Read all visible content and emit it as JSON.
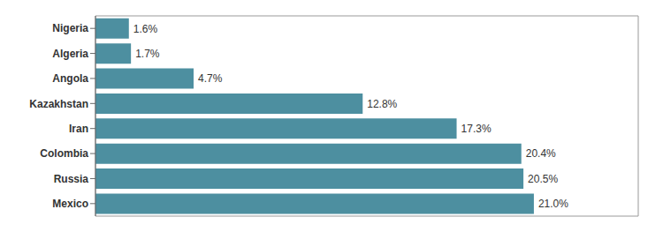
{
  "chart_data": {
    "type": "bar",
    "orientation": "horizontal",
    "categories": [
      "Mexico",
      "Russia",
      "Colombia",
      "Iran",
      "Kazakhstan",
      "Angola",
      "Algeria",
      "Nigeria"
    ],
    "values": [
      21.0,
      20.5,
      20.4,
      17.3,
      12.8,
      4.7,
      1.7,
      1.6
    ],
    "value_labels": [
      "21.0%",
      "20.5%",
      "20.4%",
      "17.3%",
      "12.8%",
      "4.7%",
      "1.7%",
      "1.6%"
    ],
    "color": "#4d8fa0",
    "xlim": [
      0,
      26
    ],
    "data_labels": true,
    "tick_labels": "y",
    "grid": false
  }
}
